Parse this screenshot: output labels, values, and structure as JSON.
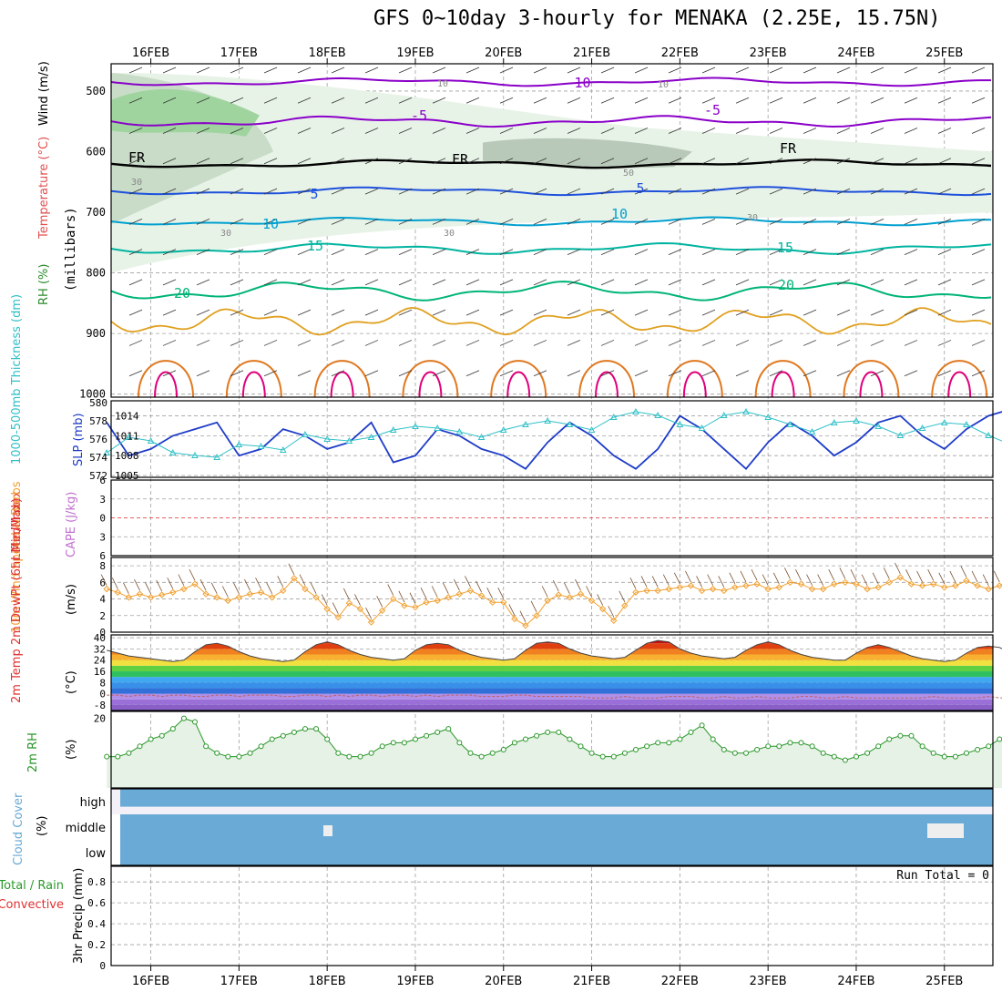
{
  "title": "GFS 0~10day 3-hourly for MENAKA (2.25E, 15.75N)",
  "dates": [
    "16FEB",
    "17FEB",
    "18FEB",
    "19FEB",
    "20FEB",
    "21FEB",
    "22FEB",
    "23FEB",
    "24FEB",
    "25FEB"
  ],
  "colors": {
    "frame": "#000000",
    "grid": "#a0a0a0",
    "rh_fill": "#9fd49f",
    "temp_purple": "#8a00c8",
    "temp_blue": "#1e50dc",
    "temp_cyan": "#00a0d0",
    "temp_teal": "#00b4a0",
    "temp_green": "#00b478",
    "temp_orange": "#e0a020",
    "temp_dkorange": "#e07820",
    "temp_magenta": "#e0007a",
    "slp": "#1e3cc8",
    "thickness": "#30c0c8",
    "wind10m": "#f0a030",
    "rh2m": "#289628",
    "cloud": "#6aaad6"
  },
  "panels": {
    "profile": {
      "ylabel_parts": [
        "RH (%)",
        "Temperature (°C)",
        "Wind (m/s)"
      ],
      "yunit": "(millibars)",
      "yticks": [
        "500",
        "600",
        "700",
        "800",
        "900",
        "1000"
      ],
      "contour_labels": [
        "-10",
        "-5",
        "-5",
        "FR",
        "FR",
        "FR",
        "5",
        "5",
        "10",
        "10",
        "15",
        "15",
        "20",
        "20",
        "30",
        "30",
        "30",
        "30",
        "10",
        "10",
        "50"
      ]
    },
    "pressure": {
      "ylabel_left": "1000-500mb Thickness (dm)",
      "ylabel_right": "SLP (mb)",
      "yticks_left": [
        "572",
        "574",
        "576",
        "578",
        "580"
      ],
      "yticks_right": [
        "1005",
        "1008",
        "1011",
        "1014"
      ]
    },
    "cape": {
      "ylabel_left": "Lifted Index",
      "ylabel_right": "CAPE (J/kg)",
      "yticks": [
        "-6",
        "-3",
        "0",
        "3",
        "6"
      ]
    },
    "wind10m": {
      "ylabel": "10m Wind Speed & Barbs",
      "yunit": "(m/s)",
      "yticks": [
        "0",
        "2",
        "4",
        "6",
        "8"
      ]
    },
    "temp2m": {
      "ylabel": "2m Temp 2m DewPt (6hr Min/Max)",
      "yunit": "(°C)",
      "yticks": [
        "-8",
        "0",
        "8",
        "16",
        "24",
        "32",
        "40"
      ]
    },
    "rh2m": {
      "ylabel": "2m RH",
      "yunit": "(%)",
      "yticks": [
        "20"
      ]
    },
    "cloud": {
      "ylabel": "Cloud Cover",
      "yunit": "(%)",
      "levels": [
        "high",
        "middle",
        "low"
      ]
    },
    "precip": {
      "ylabel_parts": [
        "Total / Rain",
        "Convective"
      ],
      "yunit": "3hr Precip (mm)",
      "yticks": [
        "0",
        "0.2",
        "0.4",
        "0.6",
        "0.8"
      ],
      "run_total": "Run Total = 0"
    }
  },
  "chart_data": [
    {
      "type": "line",
      "title": "SLP (mb)",
      "x_start": "15FEB12Z",
      "step_hours": 6,
      "ylim": [
        1005,
        1016
      ],
      "values": [
        1013,
        1008,
        1009,
        1011,
        1012,
        1013,
        1008,
        1009,
        1012,
        1011,
        1009,
        1010,
        1013,
        1007,
        1008,
        1012,
        1011,
        1009,
        1008,
        1006,
        1010,
        1013,
        1011,
        1008,
        1006,
        1009,
        1014,
        1012,
        1009,
        1006,
        1010,
        1013,
        1011,
        1008,
        1010,
        1013,
        1014,
        1011,
        1009,
        1012,
        1014,
        1015,
        1012,
        1009,
        1013,
        1015,
        1014,
        1010,
        1013,
        1015,
        1016,
        1011,
        1013,
        1014
      ]
    },
    {
      "type": "line",
      "title": "1000-500mb Thickness (dm)",
      "x_start": "15FEB12Z",
      "step_hours": 6,
      "ylim": [
        572,
        580
      ],
      "values": [
        574.5,
        576.2,
        575.8,
        574.5,
        574.2,
        574.0,
        575.4,
        575.2,
        574.8,
        576.5,
        576.0,
        575.8,
        576.2,
        577.0,
        577.4,
        577.2,
        576.8,
        576.2,
        577.0,
        577.6,
        578.0,
        577.6,
        577.0,
        578.4,
        579.0,
        578.6,
        577.6,
        577.2,
        578.6,
        579.0,
        578.4,
        577.6,
        576.8,
        577.8,
        578.0,
        577.4,
        576.4,
        577.2,
        577.8,
        577.6,
        576.4,
        575.4,
        575.8,
        576.0,
        575.6,
        574.6,
        575.2,
        575.6,
        574.6,
        573.6,
        574.2,
        574.8,
        574.4,
        572.6
      ]
    },
    {
      "type": "line",
      "title": "10m Wind Speed (m/s)",
      "x_start": "15FEB12Z",
      "step_hours": 3,
      "ylim": [
        0,
        9
      ],
      "values": [
        5.2,
        4.8,
        4.2,
        4.6,
        4.2,
        4.5,
        4.8,
        5.2,
        5.8,
        4.6,
        4.2,
        3.8,
        4.2,
        4.6,
        4.8,
        4.2,
        5.0,
        6.5,
        5.2,
        4.2,
        2.8,
        1.8,
        3.5,
        2.8,
        1.2,
        2.6,
        4.0,
        3.2,
        3.0,
        3.6,
        3.8,
        4.2,
        4.6,
        5.0,
        4.4,
        3.6,
        3.6,
        1.6,
        0.8,
        2.0,
        3.8,
        4.5,
        4.2,
        4.6,
        3.8,
        2.8,
        1.4,
        3.2,
        4.8,
        5.0,
        5.0,
        5.2,
        5.4,
        5.6,
        5.0,
        5.2,
        5.0,
        5.4,
        5.6,
        5.8,
        5.2,
        5.4,
        6.0,
        5.8,
        5.2,
        5.2,
        5.8,
        6.0,
        5.8,
        5.2,
        5.4,
        6.0,
        6.6,
        5.8,
        5.6,
        5.8,
        5.4,
        5.6,
        6.2,
        5.6,
        5.2,
        5.6,
        6.2,
        5.8,
        5.4,
        5.2,
        5.6,
        6.8,
        5.8,
        5.2,
        6.8,
        6.0,
        5.8,
        5.6,
        6.2,
        5.4,
        5.2,
        6.2,
        5.6,
        6.2,
        6.0,
        5.6
      ]
    },
    {
      "type": "area",
      "title": "2m Temp (°C)",
      "x_start": "15FEB12Z",
      "step_hours": 3,
      "ylim": [
        -12,
        42
      ],
      "values": [
        31,
        29,
        27,
        26,
        25,
        24,
        23,
        24,
        30,
        35,
        36,
        34,
        30,
        27,
        25,
        24,
        23,
        24,
        30,
        35,
        37,
        35,
        31,
        28,
        26,
        25,
        24,
        25,
        31,
        35,
        36,
        35,
        31,
        28,
        26,
        25,
        24,
        25,
        31,
        36,
        37,
        36,
        32,
        29,
        27,
        26,
        25,
        26,
        31,
        36,
        38,
        37,
        32,
        29,
        27,
        26,
        25,
        26,
        31,
        35,
        37,
        35,
        31,
        28,
        26,
        25,
        24,
        24,
        29,
        33,
        35,
        33,
        30,
        27,
        25,
        24,
        23,
        24,
        29,
        33,
        34,
        33,
        29,
        26,
        24,
        23,
        22,
        23,
        28,
        32,
        34,
        32,
        28,
        25,
        23,
        22,
        21,
        20
      ]
    },
    {
      "type": "line",
      "title": "2m DewPt (°C)",
      "x_start": "15FEB12Z",
      "step_hours": 3,
      "ylim": [
        -12,
        42
      ],
      "values": [
        -1,
        -1,
        -2,
        -1,
        -1,
        -2,
        -1,
        -1,
        -2,
        -2,
        -1,
        -1,
        -2,
        -1,
        -1,
        -1,
        -2,
        -2,
        -1,
        -1,
        -2,
        -1,
        -2,
        -1,
        -1,
        -2,
        -1,
        -1,
        -2,
        -1,
        -2,
        -1,
        -1,
        -1,
        -2,
        -2,
        -2,
        -1,
        -1,
        -2,
        -2,
        -2,
        -2,
        -2,
        -3,
        -3,
        -3,
        -2,
        -3,
        -3,
        -3,
        -2,
        -2,
        -2,
        -3,
        -3,
        -2,
        -3,
        -3,
        -2,
        -3,
        -3,
        -3,
        -2,
        -2,
        -3,
        -3,
        -2,
        -3,
        -3,
        -3,
        -3,
        -3,
        -3,
        -3,
        -2,
        -3,
        -3,
        -3,
        -3,
        -2,
        -3,
        -3,
        -3,
        -3,
        -3,
        -3,
        -4,
        -5,
        -6,
        -6,
        -4,
        -3,
        -2,
        -2,
        -2
      ]
    },
    {
      "type": "line",
      "title": "2m RH (%)",
      "x_start": "15FEB12Z",
      "step_hours": 3,
      "ylim": [
        0,
        22
      ],
      "values": [
        9,
        9,
        10,
        12,
        14,
        15,
        17,
        20,
        19,
        12,
        10,
        9,
        9,
        10,
        12,
        14,
        15,
        16,
        17,
        17,
        14,
        10,
        9,
        9,
        10,
        12,
        13,
        13,
        14,
        15,
        16,
        17,
        13,
        10,
        9,
        10,
        11,
        13,
        14,
        15,
        16,
        16,
        14,
        12,
        10,
        9,
        9,
        10,
        11,
        12,
        13,
        13,
        14,
        16,
        18,
        14,
        11,
        10,
        10,
        11,
        12,
        12,
        13,
        13,
        12,
        10,
        9,
        8,
        9,
        10,
        12,
        14,
        15,
        15,
        12,
        10,
        9,
        9,
        10,
        11,
        12,
        14,
        15,
        14,
        12,
        9,
        8,
        8,
        9,
        10,
        13,
        14,
        15,
        13,
        10,
        8,
        7,
        8,
        9,
        11,
        12,
        15,
        18
      ]
    }
  ]
}
